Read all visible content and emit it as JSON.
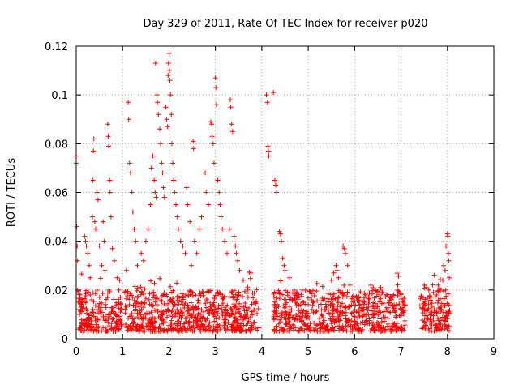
{
  "chart_data": {
    "type": "scatter",
    "title": "Day 329 of 2011, Rate Of TEC Index for receiver p020",
    "xlabel": "GPS time / hours",
    "ylabel": "ROTI / TECUs",
    "xlim": [
      0,
      9
    ],
    "ylim": [
      0,
      0.12
    ],
    "xticks": [
      "0",
      "1",
      "2",
      "3",
      "4",
      "5",
      "6",
      "7",
      "8",
      "9"
    ],
    "yticks": [
      "0",
      "0.02",
      "0.04",
      "0.06",
      "0.08",
      "0.1",
      "0.12"
    ],
    "grid": true,
    "marker": "+",
    "color": "#ff0000",
    "series": [
      {
        "name": "ROTI",
        "points": [
          [
            0.0,
            0.075
          ],
          [
            0.0,
            0.072
          ],
          [
            0.01,
            0.046
          ],
          [
            0.02,
            0.038
          ],
          [
            0.03,
            0.032
          ],
          [
            0.03,
            0.02
          ],
          [
            0.05,
            0.015
          ],
          [
            0.06,
            0.012
          ],
          [
            0.07,
            0.01
          ],
          [
            0.08,
            0.018
          ],
          [
            0.18,
            0.042
          ],
          [
            0.2,
            0.04
          ],
          [
            0.22,
            0.038
          ],
          [
            0.25,
            0.035
          ],
          [
            0.28,
            0.03
          ],
          [
            0.3,
            0.025
          ],
          [
            0.35,
            0.05
          ],
          [
            0.36,
            0.065
          ],
          [
            0.37,
            0.077
          ],
          [
            0.38,
            0.082
          ],
          [
            0.4,
            0.048
          ],
          [
            0.42,
            0.045
          ],
          [
            0.45,
            0.06
          ],
          [
            0.47,
            0.057
          ],
          [
            0.5,
            0.038
          ],
          [
            0.55,
            0.03
          ],
          [
            0.58,
            0.048
          ],
          [
            0.6,
            0.04
          ],
          [
            0.62,
            0.028
          ],
          [
            0.68,
            0.088
          ],
          [
            0.69,
            0.083
          ],
          [
            0.7,
            0.079
          ],
          [
            0.72,
            0.065
          ],
          [
            0.73,
            0.06
          ],
          [
            0.75,
            0.05
          ],
          [
            0.78,
            0.037
          ],
          [
            0.82,
            0.032
          ],
          [
            0.88,
            0.025
          ],
          [
            0.92,
            0.02
          ],
          [
            0.95,
            0.017
          ],
          [
            1.08,
            0.028
          ],
          [
            1.12,
            0.097
          ],
          [
            1.13,
            0.09
          ],
          [
            1.15,
            0.072
          ],
          [
            1.17,
            0.068
          ],
          [
            1.2,
            0.06
          ],
          [
            1.22,
            0.052
          ],
          [
            1.25,
            0.045
          ],
          [
            1.28,
            0.04
          ],
          [
            1.32,
            0.03
          ],
          [
            1.4,
            0.035
          ],
          [
            1.45,
            0.032
          ],
          [
            1.5,
            0.04
          ],
          [
            1.55,
            0.045
          ],
          [
            1.6,
            0.055
          ],
          [
            1.62,
            0.07
          ],
          [
            1.65,
            0.075
          ],
          [
            1.68,
            0.065
          ],
          [
            1.7,
            0.06
          ],
          [
            1.72,
            0.058
          ],
          [
            1.71,
            0.113
          ],
          [
            1.74,
            0.1
          ],
          [
            1.75,
            0.097
          ],
          [
            1.77,
            0.092
          ],
          [
            1.8,
            0.086
          ],
          [
            1.82,
            0.08
          ],
          [
            1.84,
            0.072
          ],
          [
            1.86,
            0.068
          ],
          [
            1.88,
            0.062
          ],
          [
            1.9,
            0.058
          ],
          [
            1.93,
            0.095
          ],
          [
            1.95,
            0.09
          ],
          [
            1.97,
            0.087
          ],
          [
            1.98,
            0.108
          ],
          [
            1.99,
            0.113
          ],
          [
            2.0,
            0.117
          ],
          [
            2.01,
            0.11
          ],
          [
            2.02,
            0.106
          ],
          [
            2.03,
            0.1
          ],
          [
            2.05,
            0.092
          ],
          [
            2.06,
            0.08
          ],
          [
            2.08,
            0.072
          ],
          [
            2.1,
            0.065
          ],
          [
            2.12,
            0.06
          ],
          [
            2.15,
            0.055
          ],
          [
            2.18,
            0.05
          ],
          [
            2.2,
            0.045
          ],
          [
            2.25,
            0.04
          ],
          [
            2.3,
            0.038
          ],
          [
            2.35,
            0.035
          ],
          [
            2.38,
            0.062
          ],
          [
            2.4,
            0.055
          ],
          [
            2.45,
            0.048
          ],
          [
            2.48,
            0.03
          ],
          [
            2.52,
            0.081
          ],
          [
            2.53,
            0.078
          ],
          [
            2.55,
            0.04
          ],
          [
            2.6,
            0.035
          ],
          [
            2.65,
            0.045
          ],
          [
            2.7,
            0.05
          ],
          [
            2.78,
            0.068
          ],
          [
            2.8,
            0.06
          ],
          [
            2.85,
            0.055
          ],
          [
            2.9,
            0.089
          ],
          [
            2.92,
            0.088
          ],
          [
            2.93,
            0.083
          ],
          [
            2.95,
            0.08
          ],
          [
            2.97,
            0.072
          ],
          [
            3.0,
            0.107
          ],
          [
            3.01,
            0.103
          ],
          [
            3.02,
            0.096
          ],
          [
            3.05,
            0.065
          ],
          [
            3.08,
            0.06
          ],
          [
            3.1,
            0.055
          ],
          [
            3.12,
            0.05
          ],
          [
            3.15,
            0.045
          ],
          [
            3.2,
            0.04
          ],
          [
            3.25,
            0.035
          ],
          [
            3.3,
            0.045
          ],
          [
            3.32,
            0.098
          ],
          [
            3.33,
            0.095
          ],
          [
            3.35,
            0.088
          ],
          [
            3.37,
            0.085
          ],
          [
            3.4,
            0.042
          ],
          [
            3.43,
            0.038
          ],
          [
            3.45,
            0.035
          ],
          [
            3.48,
            0.032
          ],
          [
            3.52,
            0.028
          ],
          [
            3.6,
            0.024
          ],
          [
            3.7,
            0.02
          ],
          [
            4.1,
            0.1
          ],
          [
            4.12,
            0.097
          ],
          [
            4.13,
            0.079
          ],
          [
            4.14,
            0.077
          ],
          [
            4.15,
            0.075
          ],
          [
            4.25,
            0.101
          ],
          [
            4.28,
            0.065
          ],
          [
            4.3,
            0.063
          ],
          [
            4.32,
            0.06
          ],
          [
            4.38,
            0.044
          ],
          [
            4.4,
            0.043
          ],
          [
            4.42,
            0.04
          ],
          [
            4.45,
            0.033
          ],
          [
            4.48,
            0.03
          ],
          [
            4.5,
            0.028
          ],
          [
            4.6,
            0.025
          ],
          [
            4.7,
            0.02
          ],
          [
            4.8,
            0.018
          ],
          [
            4.9,
            0.015
          ],
          [
            5.0,
            0.014
          ],
          [
            5.5,
            0.024
          ],
          [
            5.55,
            0.027
          ],
          [
            5.6,
            0.03
          ],
          [
            5.62,
            0.028
          ],
          [
            5.65,
            0.025
          ],
          [
            5.75,
            0.038
          ],
          [
            5.78,
            0.037
          ],
          [
            5.8,
            0.035
          ],
          [
            5.85,
            0.03
          ],
          [
            5.9,
            0.022
          ],
          [
            6.35,
            0.022
          ],
          [
            6.4,
            0.021
          ],
          [
            6.45,
            0.02
          ],
          [
            6.5,
            0.019
          ],
          [
            6.55,
            0.02
          ],
          [
            6.6,
            0.019
          ],
          [
            6.7,
            0.018
          ],
          [
            6.8,
            0.016
          ],
          [
            6.9,
            0.014
          ],
          [
            7.0,
            0.012
          ],
          [
            7.5,
            0.022
          ],
          [
            7.55,
            0.021
          ],
          [
            7.6,
            0.02
          ],
          [
            7.7,
            0.019
          ],
          [
            7.8,
            0.022
          ],
          [
            7.85,
            0.02
          ],
          [
            7.9,
            0.024
          ],
          [
            7.92,
            0.03
          ],
          [
            7.95,
            0.028
          ],
          [
            7.97,
            0.038
          ],
          [
            8.0,
            0.043
          ],
          [
            8.01,
            0.042
          ],
          [
            8.02,
            0.035
          ],
          [
            8.03,
            0.032
          ],
          [
            8.04,
            0.025
          ]
        ],
        "baseline": {
          "description_free": true,
          "ranges": [
            [
              0.05,
              0.98
            ],
            [
              1.05,
              3.95
            ],
            [
              4.25,
              7.1
            ],
            [
              7.4,
              8.05
            ]
          ],
          "band": [
            0.003,
            0.02
          ],
          "count": 1600,
          "seed": 20111125
        }
      }
    ]
  }
}
